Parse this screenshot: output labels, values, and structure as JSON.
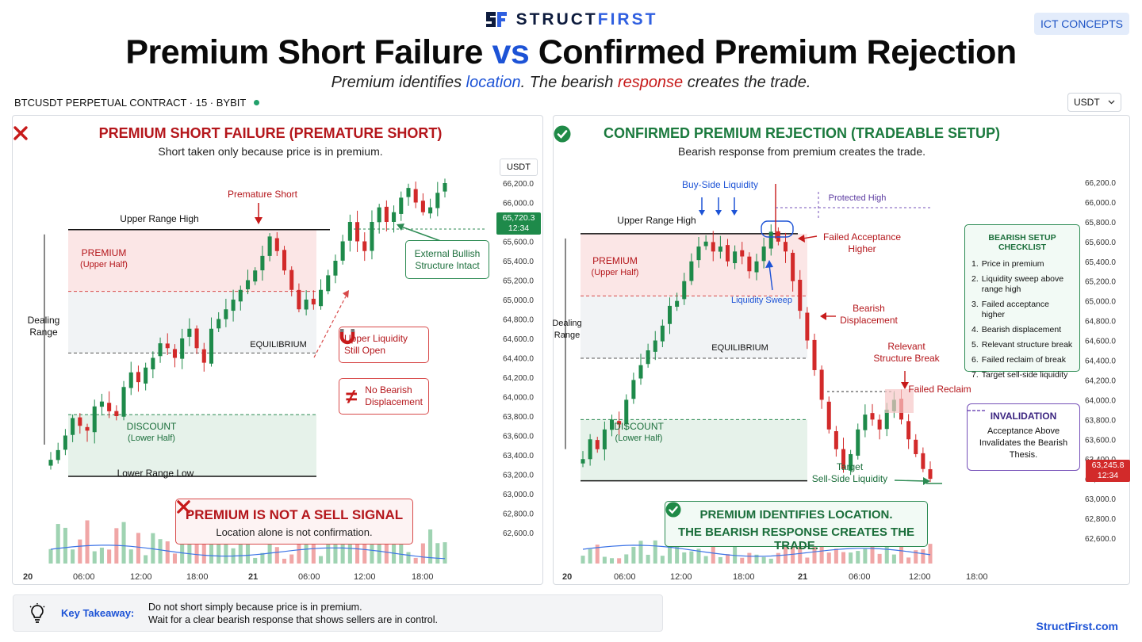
{
  "brand": {
    "name_a": "STRUCT",
    "name_b": "FIRST",
    "logo_icon": "sf-logo-icon"
  },
  "tag": "ICT CONCEPTS",
  "title": {
    "part1": "Premium Short Failure",
    "vs": "vs",
    "part2": "Confirmed Premium Rejection"
  },
  "subtitle": {
    "a": "Premium identifies ",
    "b": "location",
    "c": ". The bearish ",
    "d": "response",
    "e": " creates the trade."
  },
  "symbol_line": "BTCUSDT PERPETUAL CONTRACT · 15 · BYBIT",
  "currency_select": "USDT",
  "colors": {
    "bull": "#1e8a4a",
    "bear": "#d22a2a",
    "accent": "#1d53d6",
    "premium_zone": "#fbe6e6",
    "discount_zone": "#e6f2ea"
  },
  "left": {
    "title": "PREMIUM SHORT FAILURE  (PREMATURE SHORT)",
    "subtitle": "Short taken only because price is in premium.",
    "axis_unit": "USDT",
    "price_tag": {
      "price": "65,720.3",
      "time": "12:34"
    },
    "labels": {
      "upper_range_high": "Upper Range High",
      "lower_range_low": "Lower Range Low",
      "premium": "PREMIUM",
      "premium_sub": "(Upper Half)",
      "discount": "DISCOUNT",
      "discount_sub": "(Lower Half)",
      "equilibrium": "EQUILIBRIUM",
      "dealing_range_1": "Dealing",
      "dealing_range_2": "Range",
      "premature_short": "Premature Short"
    },
    "callouts": {
      "external_1": "External Bullish",
      "external_2": "Structure Intact",
      "liquidity_1": "Upper Liquidity",
      "liquidity_2": "Still Open",
      "displacement_1": "No Bearish",
      "displacement_2": "Displacement"
    },
    "bottom_box": {
      "title": "PREMIUM IS NOT A SELL SIGNAL",
      "sub": "Location alone is not confirmation."
    }
  },
  "right": {
    "title": "CONFIRMED PREMIUM REJECTION (TRADEABLE SETUP)",
    "subtitle": "Bearish response from premium creates the trade.",
    "price_tag": {
      "price": "63,245.8",
      "time": "12:34"
    },
    "labels": {
      "upper_range_high": "Upper Range High",
      "premium": "PREMIUM",
      "premium_sub": "(Upper Half)",
      "discount": "DISCOUNT",
      "discount_sub": "(Lower Half)",
      "equilibrium": "EQUILIBRIUM",
      "dealing_range_1": "Dealing",
      "dealing_range_2": "Range",
      "buy_side_liquidity": "Buy-Side Liquidity",
      "protected_high": "Protected High",
      "liquidity_sweep": "Liquidity Sweep",
      "failed_acceptance_1": "Failed Acceptance",
      "failed_acceptance_2": "Higher",
      "bearish_disp_1": "Bearish",
      "bearish_disp_2": "Displacement",
      "structure_break_1": "Relevant",
      "structure_break_2": "Structure Break",
      "failed_reclaim": "Failed Reclaim",
      "target_1": "Target",
      "target_2": "Sell-Side Liquidity"
    },
    "checklist": {
      "title": "BEARISH SETUP CHECKLIST",
      "items": [
        "Price in premium",
        "Liquidity sweep above range high",
        "Failed acceptance higher",
        "Bearish displacement",
        "Relevant structure break",
        "Failed reclaim of break",
        "Target sell-side liquidity"
      ]
    },
    "invalidation": {
      "title": "INVALIDATION",
      "body": "Acceptance Above Invalidates the Bearish Thesis."
    },
    "bottom_box": {
      "line1": "PREMIUM IDENTIFIES LOCATION.",
      "line2": "THE BEARISH RESPONSE CREATES THE TRADE."
    }
  },
  "takeaway": {
    "label": "Key Takeaway:",
    "line1": "Do not short simply because price is in premium.",
    "line2": "Wait for a clear bearish response that shows sellers are in control."
  },
  "site_url": "StructFirst.com",
  "chart_data": [
    {
      "type": "line",
      "name": "left-panel",
      "yticks": [
        "66,200.0",
        "66,000.0",
        "65,800.0",
        "65,600.0",
        "65,400.0",
        "65,200.0",
        "65,000.0",
        "64,800.0",
        "64,600.0",
        "64,400.0",
        "64,200.0",
        "64,000.0",
        "63,800.0",
        "63,600.0",
        "63,400.0",
        "63,200.0",
        "63,000.0",
        "62,800.0",
        "62,600.0"
      ],
      "xticks": [
        "20",
        "06:00",
        "12:00",
        "18:00",
        "21",
        "06:00",
        "12:00",
        "18:00"
      ],
      "ylim": [
        62600,
        66200
      ],
      "upper_range_high": 65720,
      "equilibrium": 64450,
      "lower_range_low": 63180,
      "path": [
        63350,
        63450,
        63600,
        63780,
        63700,
        63650,
        63900,
        63950,
        63850,
        63800,
        64100,
        64250,
        64150,
        64300,
        64400,
        64550,
        64500,
        64400,
        64600,
        64700,
        64500,
        64350,
        64700,
        64800,
        64900,
        65000,
        65100,
        65200,
        65300,
        65450,
        65650,
        65500,
        65300,
        65100,
        64900,
        65000,
        64950,
        65100,
        65250,
        65400,
        65600,
        65800,
        65600,
        65500,
        65800,
        65950,
        65800,
        65900,
        66050,
        66150,
        66000,
        65900,
        65950,
        66100,
        66200
      ]
    },
    {
      "type": "line",
      "name": "right-panel",
      "yticks": [
        "66,200.0",
        "66,000.0",
        "65,800.0",
        "65,600.0",
        "65,400.0",
        "65,200.0",
        "65,000.0",
        "64,800.0",
        "64,600.0",
        "64,400.0",
        "64,200.0",
        "64,000.0",
        "63,800.0",
        "63,600.0",
        "63,400.0",
        "63,200.0",
        "63,000.0",
        "62,800.0",
        "62,600.0"
      ],
      "xticks": [
        "20",
        "06:00",
        "12:00",
        "18:00",
        "21",
        "06:00",
        "12:00",
        "18:00"
      ],
      "ylim": [
        62600,
        66200
      ],
      "upper_range_high": 65680,
      "equilibrium": 64420,
      "lower_range_low": 63180,
      "break_level": 63900,
      "path": [
        63400,
        63600,
        63500,
        63700,
        63800,
        63750,
        64000,
        64200,
        64350,
        64500,
        64600,
        64750,
        64950,
        65000,
        65200,
        65400,
        65550,
        65600,
        65500,
        65550,
        65400,
        65500,
        65450,
        65300,
        65400,
        65550,
        65700,
        65600,
        65500,
        65200,
        64900,
        64600,
        64300,
        64000,
        63700,
        63500,
        63300,
        63450,
        63700,
        63850,
        63800,
        63700,
        63900,
        64000,
        63800,
        63600,
        63450,
        63300,
        63200
      ]
    }
  ]
}
